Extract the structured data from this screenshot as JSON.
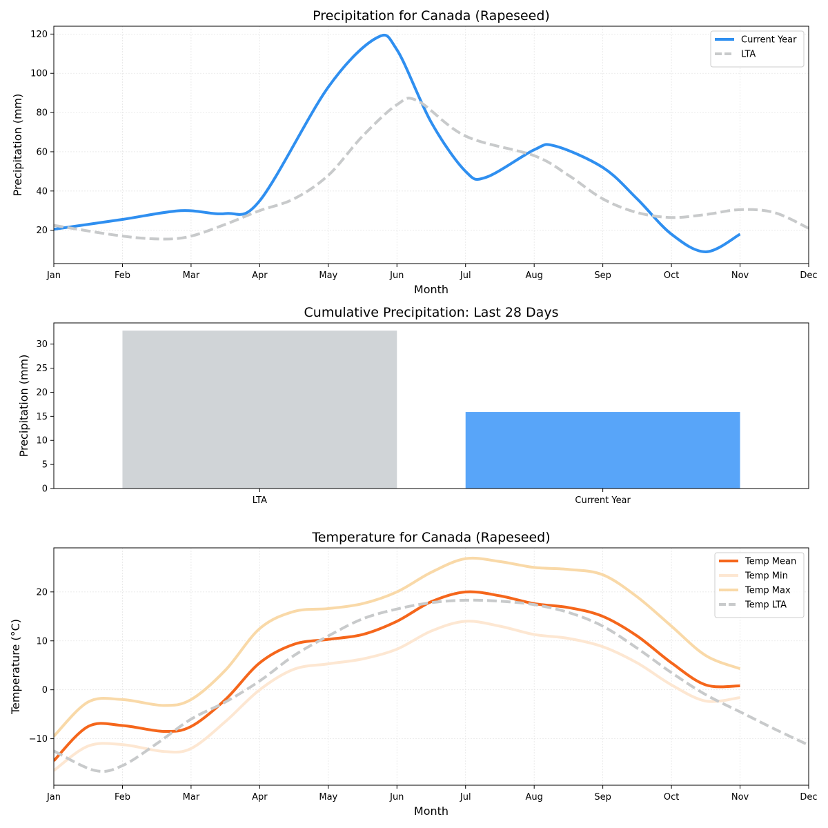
{
  "chart_data": [
    {
      "type": "line",
      "title": "Precipitation for Canada (Rapeseed)",
      "xlabel": "Month",
      "ylabel": "Precipitation (mm)",
      "categories": [
        "Jan",
        "Feb",
        "Mar",
        "Apr",
        "May",
        "Jun",
        "Jul",
        "Aug",
        "Sep",
        "Oct",
        "Nov",
        "Dec"
      ],
      "xlim": [
        0,
        11
      ],
      "ylim": [
        3,
        124
      ],
      "yticks": [
        20,
        40,
        60,
        80,
        100,
        120
      ],
      "grid": true,
      "legend_position": "top-right",
      "series": [
        {
          "name": "Current Year",
          "color": "#2f8ff0",
          "style": "solid",
          "x": [
            0,
            1,
            1.85,
            2.5,
            3.0,
            4.0,
            4.7,
            5.0,
            5.5,
            6.0,
            6.3,
            7.0,
            7.3,
            8.0,
            8.5,
            9.0,
            9.5,
            10.0
          ],
          "y": [
            20.5,
            25.5,
            30,
            28.5,
            35,
            93,
            118,
            112,
            75,
            50,
            47,
            61,
            63,
            52,
            36,
            18,
            9,
            18
          ]
        },
        {
          "name": "LTA",
          "color": "#c8cacb",
          "style": "dashed",
          "x": [
            0,
            1,
            1.6,
            2.0,
            2.5,
            3.0,
            3.5,
            4.0,
            4.5,
            5.0,
            5.3,
            6.0,
            7.0,
            7.5,
            8.0,
            8.5,
            9.0,
            9.5,
            10.0,
            10.5,
            11.0
          ],
          "y": [
            22.5,
            17,
            15.5,
            17,
            23,
            30,
            36,
            48,
            68,
            84,
            86,
            68,
            58,
            48,
            36,
            29,
            26.5,
            28,
            30.5,
            29,
            21
          ]
        }
      ]
    },
    {
      "type": "bar",
      "title": "Cumulative Precipitation: Last 28 Days",
      "xlabel": "",
      "ylabel": "Precipitation (mm)",
      "categories": [
        "LTA",
        "Current Year"
      ],
      "values": [
        32.8,
        15.9
      ],
      "colors": [
        "#d0d4d7",
        "#58a5f9"
      ],
      "ylim": [
        0,
        34.4
      ],
      "yticks": [
        0,
        5,
        10,
        15,
        20,
        25,
        30
      ],
      "grid": false
    },
    {
      "type": "line",
      "title": "Temperature for Canada (Rapeseed)",
      "xlabel": "Month",
      "ylabel": "Temperature (°C)",
      "categories": [
        "Jan",
        "Feb",
        "Mar",
        "Apr",
        "May",
        "Jun",
        "Jul",
        "Aug",
        "Sep",
        "Oct",
        "Nov",
        "Dec"
      ],
      "xlim": [
        0,
        11
      ],
      "ylim": [
        -19.5,
        29
      ],
      "yticks": [
        -10,
        0,
        10,
        20
      ],
      "grid": true,
      "legend_position": "top-right",
      "series": [
        {
          "name": "Temp Mean",
          "color": "#f5661b",
          "style": "solid",
          "x": [
            0,
            0.5,
            1.0,
            1.6,
            2.0,
            2.5,
            3.0,
            3.5,
            4.0,
            4.5,
            5.0,
            5.5,
            6.0,
            6.5,
            7.0,
            7.5,
            8.0,
            8.5,
            9.0,
            9.5,
            10.0
          ],
          "y": [
            -14.5,
            -7.5,
            -7.3,
            -8.5,
            -7.5,
            -2,
            5.5,
            9.3,
            10.3,
            11.3,
            14,
            18,
            20,
            19.2,
            17.6,
            16.8,
            15,
            11,
            5.5,
            1,
            0.8
          ]
        },
        {
          "name": "Temp Min",
          "color": "#fde7d2",
          "style": "solid",
          "x": [
            0,
            0.5,
            1.0,
            1.6,
            2.0,
            2.5,
            3.0,
            3.5,
            4.0,
            4.5,
            5.0,
            5.5,
            6.0,
            6.5,
            7.0,
            7.5,
            8.0,
            8.5,
            9.0,
            9.5,
            10.0
          ],
          "y": [
            -16.5,
            -11.5,
            -11.2,
            -12.6,
            -12,
            -6.5,
            0,
            4.2,
            5.3,
            6.3,
            8.3,
            12,
            14,
            13,
            11.3,
            10.5,
            8.8,
            5.5,
            1,
            -2.3,
            -1.6
          ]
        },
        {
          "name": "Temp Max",
          "color": "#f9d9a8",
          "style": "solid",
          "x": [
            0,
            0.5,
            1.0,
            1.6,
            2.0,
            2.5,
            3.0,
            3.5,
            4.0,
            4.5,
            5.0,
            5.5,
            6.0,
            6.5,
            7.0,
            7.5,
            8.0,
            8.5,
            9.0,
            9.5,
            10.0
          ],
          "y": [
            -9.5,
            -2.5,
            -2,
            -3.2,
            -2,
            4,
            12.5,
            16,
            16.6,
            17.6,
            20,
            24,
            26.8,
            26.2,
            25,
            24.6,
            23.5,
            19,
            13,
            7,
            4.3
          ]
        },
        {
          "name": "Temp LTA",
          "color": "#c8cacb",
          "style": "dashed",
          "x": [
            0,
            0.6,
            1.0,
            1.5,
            2.0,
            2.5,
            3.0,
            3.5,
            4.0,
            4.5,
            5.0,
            5.5,
            6.0,
            6.5,
            7.0,
            7.5,
            8.0,
            8.5,
            9.0,
            9.5,
            10.0,
            10.5,
            11.0
          ],
          "y": [
            -12.5,
            -16.5,
            -15.5,
            -11,
            -6,
            -2.5,
            1.8,
            7,
            11,
            14.5,
            16.5,
            17.8,
            18.3,
            18.1,
            17.4,
            15.8,
            13,
            8.5,
            3.5,
            -1,
            -4.5,
            -8,
            -11.3
          ]
        }
      ]
    }
  ]
}
